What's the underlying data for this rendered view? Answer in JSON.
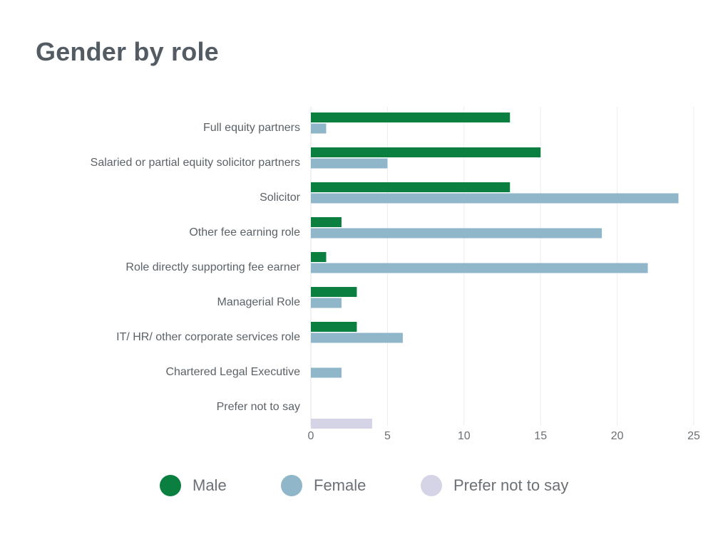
{
  "chart_data": {
    "type": "bar",
    "orientation": "horizontal",
    "title": "Gender by role",
    "xlabel": "",
    "ylabel": "",
    "xlim": [
      0,
      25
    ],
    "x_ticks": [
      0,
      5,
      10,
      15,
      20,
      25
    ],
    "grid": true,
    "legend_position": "bottom",
    "categories": [
      "Full equity partners",
      "Salaried or partial equity solicitor partners",
      "Solicitor",
      "Other fee earning role",
      "Role directly supporting fee earner",
      "Managerial Role",
      "IT/ HR/ other corporate services role",
      "Chartered Legal Executive",
      "Prefer not to say"
    ],
    "series": [
      {
        "name": "Male",
        "color": "#0a7f3f",
        "values": [
          13,
          15,
          13,
          2,
          1,
          3,
          3,
          0,
          0
        ]
      },
      {
        "name": "Female",
        "color": "#8fb6c9",
        "values": [
          1,
          5,
          24,
          19,
          22,
          2,
          6,
          2,
          0
        ]
      },
      {
        "name": "Prefer not to say",
        "color": "#d5d3e6",
        "values": [
          0,
          0,
          0,
          0,
          0,
          0,
          0,
          0,
          4
        ]
      }
    ]
  }
}
